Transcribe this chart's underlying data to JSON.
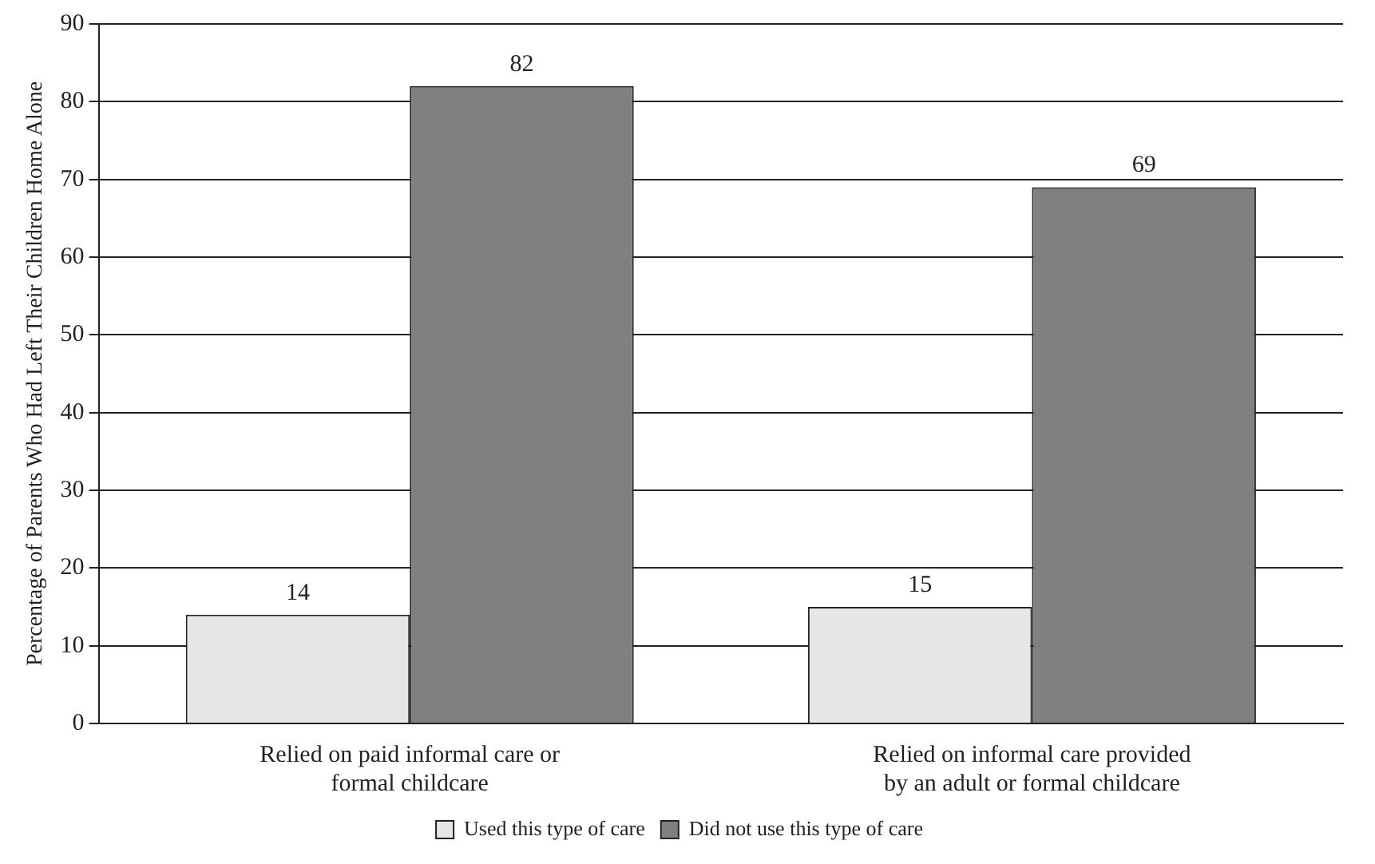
{
  "chart_data": {
    "type": "bar",
    "ylabel": "Percentage of Parents Who Had Left Their Children Home Alone",
    "categories": [
      "Relied on paid informal care or formal childcare",
      "Relied on informal care provided by an adult or formal childcare"
    ],
    "series": [
      {
        "name": "Used this type of care",
        "color": "#e6e6e6",
        "values": [
          14,
          15
        ]
      },
      {
        "name": "Did not use this type of care",
        "color": "#808083",
        "values": [
          82,
          69
        ]
      }
    ],
    "ylim": [
      0,
      90
    ],
    "yticks": [
      0,
      10,
      20,
      30,
      40,
      50,
      60,
      70,
      80,
      90
    ],
    "grid": "y",
    "legend": "bottom",
    "data_labels": true
  }
}
